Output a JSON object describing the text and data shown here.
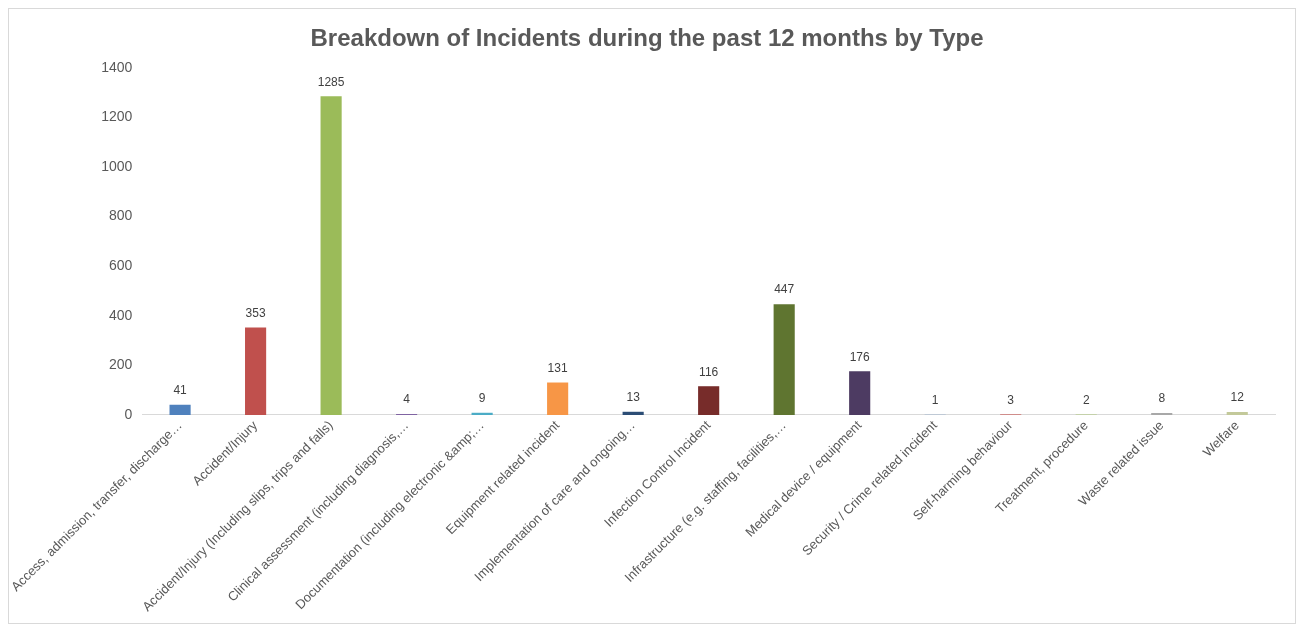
{
  "chart_data": {
    "type": "bar",
    "title": "Breakdown of Incidents during the past 12 months by Type",
    "categories": [
      "Access, admission, transfer, discharge…",
      "Accident/Injury",
      "Accident/Injury (Including slips, trips and falls)",
      "Clinical assessment (including diagnosis,…",
      "Documentation (including electronic &amp;…",
      "Equipment related incident",
      "Implementation of care and ongoing…",
      "Infection Control Incident",
      "Infrastructure (e.g. staffing, facilities,…",
      "Medical device / equipment",
      "Security / Crime related incident",
      "Self-harming behaviour",
      "Treatment, procedure",
      "Waste related issue",
      "Welfare"
    ],
    "values": [
      41,
      353,
      1285,
      4,
      9,
      131,
      13,
      116,
      447,
      176,
      1,
      3,
      2,
      8,
      12
    ],
    "colors": [
      "#4f81bd",
      "#c0504d",
      "#9bbb59",
      "#8064a2",
      "#4bacc6",
      "#f79646",
      "#2c4d75",
      "#772c2a",
      "#5f7530",
      "#4d3b62",
      "#729aca",
      "#cd7371",
      "#afc97a",
      "#a8a8a8",
      "#c3c99a"
    ],
    "ylim": [
      0,
      1400
    ],
    "yticks": [
      0,
      200,
      400,
      600,
      800,
      1000,
      1200,
      1400
    ],
    "grid": false,
    "legend": false,
    "data_labels": true
  }
}
